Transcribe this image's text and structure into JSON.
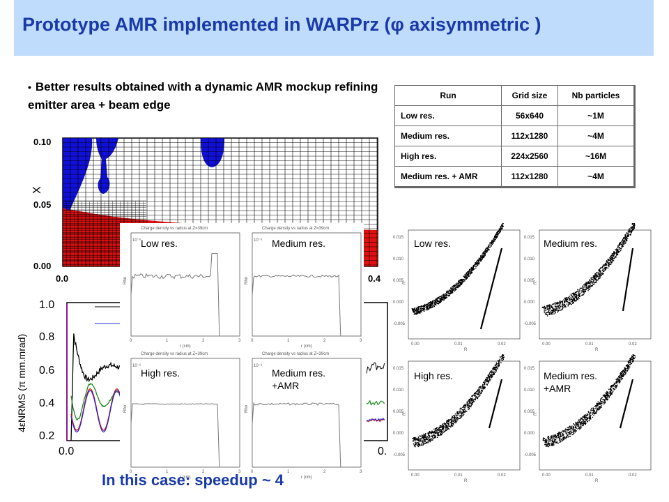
{
  "title": "Prototype AMR implemented in WARPrz (φ axisymmetric )",
  "bullet": "Better results obtained with a dynamic AMR mockup refining emitter area + beam edge",
  "table": {
    "headers": [
      "Run",
      "Grid size",
      "Nb particles"
    ],
    "rows": [
      [
        "Low res.",
        "56x640",
        "~1M"
      ],
      [
        "Medium res.",
        "112x1280",
        "~4M"
      ],
      [
        "High res.",
        "224x2560",
        "~16M"
      ],
      [
        "Medium res. + AMR",
        "112x1280",
        "~4M"
      ]
    ]
  },
  "mesh_plot": {
    "ylabel": "X",
    "yticks": [
      "0.10",
      "0.05",
      "0.00"
    ],
    "xticks": [
      "0.0",
      "0.4"
    ]
  },
  "emittance_plot": {
    "ylabel": "4εNRMS (π mm.mrad)",
    "yticks": [
      "1.0",
      "0.8",
      "0.6",
      "0.4",
      "0.2"
    ],
    "xtick": "0.0",
    "xtick_right": "0.",
    "colors": {
      "black": "#000000",
      "green": "#1a8a1a",
      "red": "#d01010",
      "blue": "#2a2ad0"
    }
  },
  "density_panels": [
    {
      "label": "Low res.",
      "caption": "Charge density vs radius at Z=39cm",
      "ylabel": "Rho",
      "xlabel": "r (cm)"
    },
    {
      "label": "Medium res.",
      "caption": "Charge density vs radius at Z=39cm",
      "ylabel": "Rho",
      "xlabel": "r (cm)"
    },
    {
      "label": "High res.",
      "caption": "Charge density vs radius at Z=39cm",
      "ylabel": "Rho",
      "xlabel": "r (cm)"
    },
    {
      "label": "Medium res.\n+AMR",
      "caption": "Charge density vs radius at Z=39cm",
      "ylabel": "Rho",
      "xlabel": "r (cm)"
    }
  ],
  "density_axis": {
    "xticks": [
      "0",
      "1",
      "2",
      "3"
    ],
    "yexp": "10⁻⁶"
  },
  "phase_panels": [
    {
      "label": "Low res.",
      "ylabel": "R'",
      "xlabel": "R"
    },
    {
      "label": "Medium res.",
      "ylabel": "R'",
      "xlabel": "R"
    },
    {
      "label": "High res.",
      "ylabel": "R'",
      "xlabel": "R"
    },
    {
      "label": "Medium res.\n+AMR",
      "ylabel": "R'",
      "xlabel": "R"
    }
  ],
  "phase_axis": {
    "yticks": [
      "0.015",
      "0.010",
      "0.005",
      "0.000",
      "-0.005"
    ],
    "xticks": [
      "0.00",
      "0.01",
      "0.02"
    ]
  },
  "speedup": "In this case: speedup ~ 4"
}
